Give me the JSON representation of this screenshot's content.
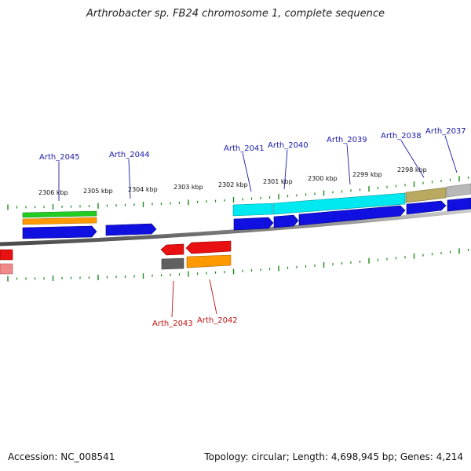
{
  "title": "Arthrobacter sp. FB24 chromosome 1, complete sequence",
  "footer": {
    "accession": "Accession: NC_008541",
    "summary": "Topology: circular; Length: 4,698,945 bp; Genes: 4,214"
  },
  "colors": {
    "backbone": "#8a8a8a",
    "tick": "#1a8a1a",
    "forward_cds": "#1010e0",
    "reverse_cds": "#e81010",
    "gene_cyan": "#00e8f0",
    "gene_green": "#22cc22",
    "gene_orange": "#ff9900",
    "gene_olive": "#b8a860",
    "gene_gray": "#b8b8b8",
    "gene_dark": "#606060",
    "label_forward": "#1a1aa8",
    "label_reverse": "#c01010"
  },
  "coordinate_labels": [
    "2306 kbp",
    "2305 kbp",
    "2304 kbp",
    "2303 kbp",
    "2302 kbp",
    "2301 kbp",
    "2300 kbp",
    "2299 kbp",
    "2298 kbp"
  ],
  "forward_labels": [
    "Arth_2045",
    "Arth_2044",
    "Arth_2041",
    "Arth_2040",
    "Arth_2039",
    "Arth_2038",
    "Arth_2037"
  ],
  "reverse_labels": [
    "Arth_2043",
    "Arth_2042"
  ]
}
